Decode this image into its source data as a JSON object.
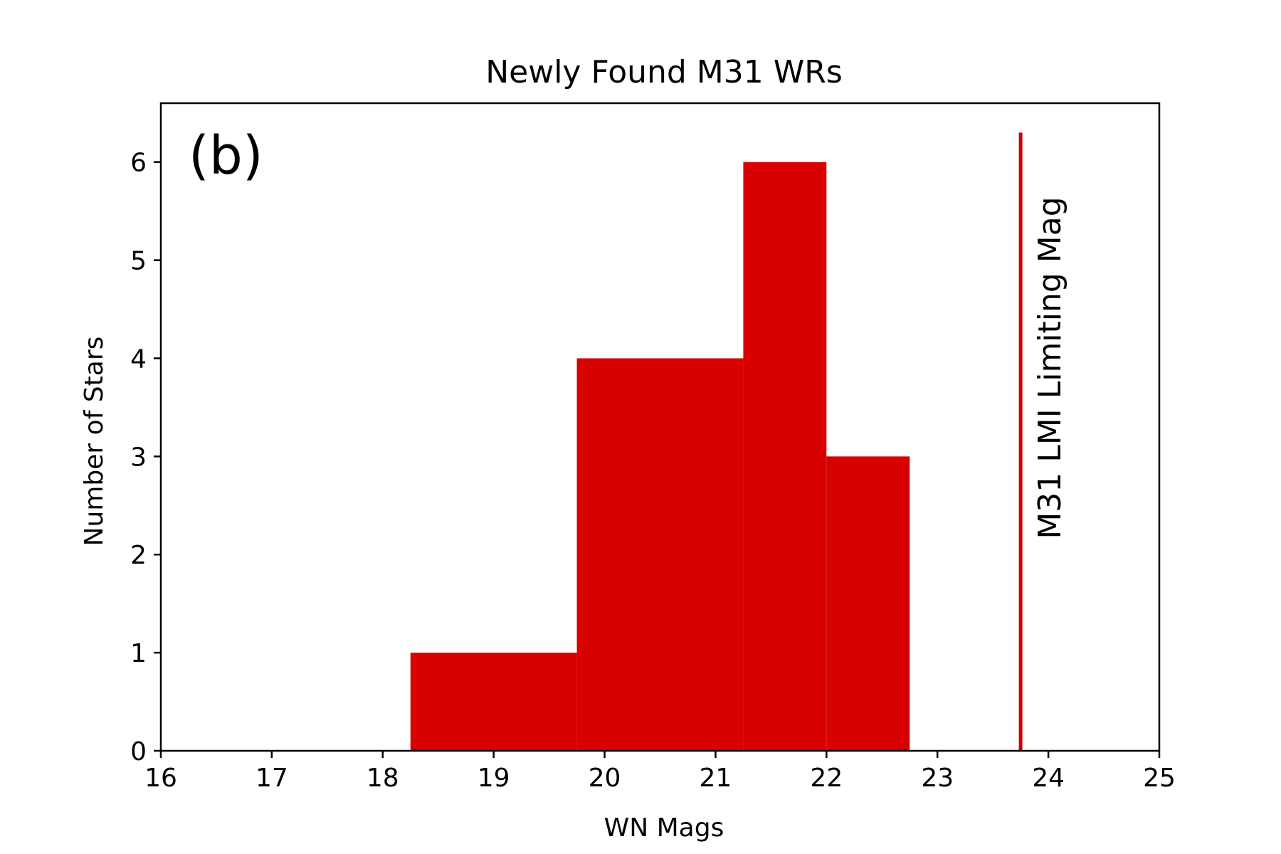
{
  "chart_data": {
    "type": "bar",
    "title": "Newly Found M31 WRs",
    "xlabel": "WN Mags",
    "ylabel": "Number of Stars",
    "panel_label": "(b)",
    "xlim": [
      16,
      25
    ],
    "ylim": [
      0,
      6.6
    ],
    "x_ticks": [
      "16",
      "17",
      "18",
      "19",
      "20",
      "21",
      "22",
      "23",
      "24",
      "25"
    ],
    "y_ticks": [
      "0",
      "1",
      "2",
      "3",
      "4",
      "5",
      "6"
    ],
    "grid": false,
    "bar_color": "#d90000",
    "bins": [
      {
        "start": 18.25,
        "end": 19.75,
        "count": 1
      },
      {
        "start": 19.75,
        "end": 20.5,
        "count": 4
      },
      {
        "start": 20.5,
        "end": 21.25,
        "count": 4
      },
      {
        "start": 21.25,
        "end": 22.0,
        "count": 6
      },
      {
        "start": 22.0,
        "end": 22.75,
        "count": 3
      }
    ],
    "annotations": [
      {
        "type": "vline",
        "x": 23.75,
        "y_end": 6.3,
        "color": "#cc0000",
        "label": "M31 LMI Limiting Mag"
      }
    ]
  }
}
